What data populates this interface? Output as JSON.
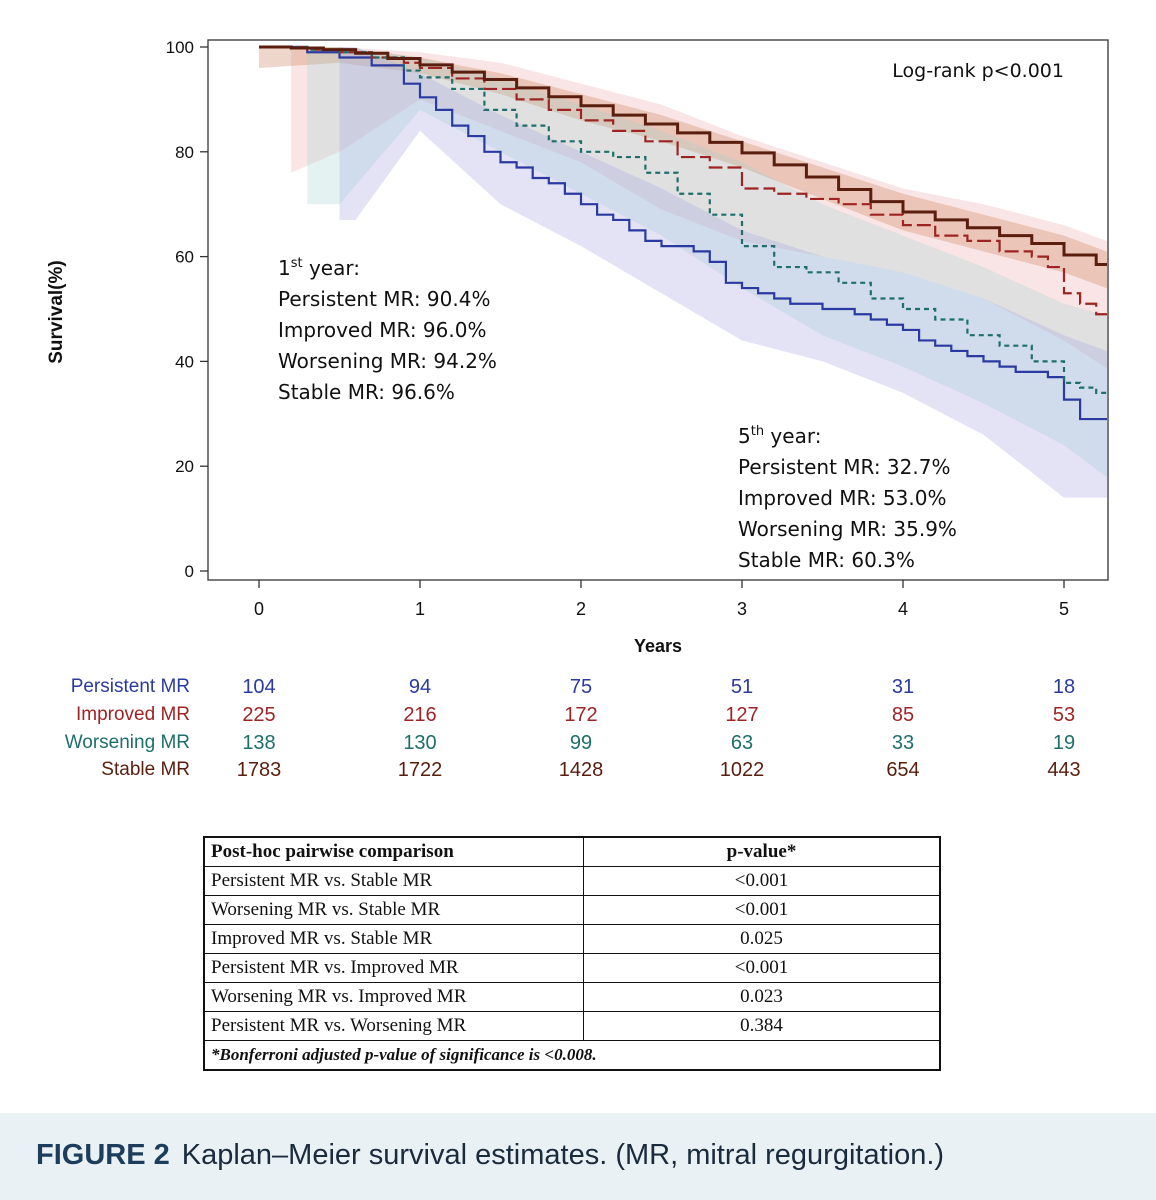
{
  "chart_data": {
    "type": "line",
    "title": "",
    "xlabel": "Years",
    "ylabel": "Survival(%)",
    "xlim": [
      -0.3,
      5.35
    ],
    "ylim": [
      -2,
      101
    ],
    "x_ticks": [
      0,
      1,
      2,
      3,
      4,
      5
    ],
    "y_ticks": [
      0,
      20,
      40,
      60,
      80,
      100
    ],
    "annotation_logrank": "Log-rank p<0.001",
    "series": [
      {
        "name": "Persistent MR",
        "color": "#2b3aa0",
        "dash": "solid",
        "x": [
          0,
          0.3,
          0.5,
          0.7,
          0.9,
          1.0,
          1.1,
          1.2,
          1.3,
          1.4,
          1.5,
          1.6,
          1.7,
          1.8,
          1.9,
          2.0,
          2.1,
          2.2,
          2.3,
          2.4,
          2.5,
          2.6,
          2.7,
          2.8,
          2.9,
          3.0,
          3.1,
          3.2,
          3.3,
          3.4,
          3.5,
          3.6,
          3.7,
          3.8,
          3.9,
          4.0,
          4.1,
          4.2,
          4.3,
          4.4,
          4.5,
          4.6,
          4.7,
          4.8,
          4.9,
          5.0,
          5.1,
          5.3
        ],
        "y": [
          100,
          99,
          98,
          96.5,
          93,
          90.4,
          88,
          85,
          83,
          80,
          78,
          77,
          75,
          74,
          72,
          70,
          68,
          67,
          65,
          63,
          62,
          62,
          61,
          59,
          55,
          54,
          53,
          52,
          51,
          51,
          50,
          50,
          49,
          48,
          47,
          46,
          44,
          43,
          42,
          41,
          40,
          39,
          38,
          38,
          37,
          32.7,
          29,
          29
        ]
      },
      {
        "name": "Improved MR",
        "color": "#9e2424",
        "dash": "long",
        "x": [
          0,
          0.3,
          0.5,
          0.7,
          0.9,
          1.0,
          1.2,
          1.4,
          1.6,
          1.8,
          2.0,
          2.2,
          2.4,
          2.6,
          2.8,
          3.0,
          3.2,
          3.4,
          3.6,
          3.8,
          4.0,
          4.2,
          4.4,
          4.6,
          4.8,
          4.9,
          5.0,
          5.1,
          5.2,
          5.3
        ],
        "y": [
          100,
          99.5,
          99,
          98,
          97,
          96,
          94,
          92,
          90,
          88,
          86,
          84,
          82,
          79,
          77,
          73,
          72,
          71,
          70,
          68,
          66,
          64,
          63,
          61,
          60,
          58,
          53,
          51,
          49,
          48.5
        ]
      },
      {
        "name": "Worsening MR",
        "color": "#1e6f6b",
        "dash": "short",
        "x": [
          0,
          0.3,
          0.5,
          0.7,
          0.9,
          1.0,
          1.2,
          1.4,
          1.6,
          1.8,
          2.0,
          2.2,
          2.4,
          2.6,
          2.8,
          3.0,
          3.2,
          3.4,
          3.6,
          3.8,
          4.0,
          4.2,
          4.4,
          4.6,
          4.8,
          5.0,
          5.1,
          5.2,
          5.3
        ],
        "y": [
          100,
          99.5,
          99,
          98,
          95.5,
          94.2,
          92,
          88,
          85,
          82,
          80,
          79,
          76,
          72,
          68,
          62,
          58,
          57,
          55,
          52,
          50,
          48,
          45,
          43,
          40,
          35.9,
          35,
          34,
          34
        ]
      },
      {
        "name": "Stable MR",
        "color": "#5a1e0e",
        "dash": "solid",
        "x": [
          0,
          0.2,
          0.4,
          0.6,
          0.8,
          1.0,
          1.2,
          1.4,
          1.6,
          1.8,
          2.0,
          2.2,
          2.4,
          2.6,
          2.8,
          3.0,
          3.2,
          3.4,
          3.6,
          3.8,
          4.0,
          4.2,
          4.4,
          4.6,
          4.8,
          5.0,
          5.2,
          5.35
        ],
        "y": [
          100,
          99.8,
          99.5,
          98.8,
          97.8,
          96.6,
          95.2,
          93.8,
          92.2,
          90.5,
          88.8,
          87,
          85.3,
          83.6,
          81.8,
          79.8,
          77.5,
          75.2,
          72.8,
          70.5,
          68.5,
          67,
          65.5,
          64,
          62.5,
          60.3,
          58.5,
          57
        ]
      }
    ],
    "bands": [
      {
        "series": "Improved MR",
        "color": "#e8a0a0",
        "opacity": 0.28,
        "x": [
          0.2,
          0.5,
          1.0,
          1.5,
          2.0,
          2.5,
          3.0,
          3.5,
          4.0,
          4.5,
          5.0,
          5.35
        ],
        "upper": [
          100,
          100,
          99,
          97,
          93,
          89,
          83,
          78,
          73,
          70,
          66,
          62
        ],
        "lower": [
          76,
          80,
          90,
          84,
          78,
          69,
          63,
          60,
          57,
          52,
          44,
          37
        ]
      },
      {
        "series": "Stable MR",
        "color": "#c77a50",
        "opacity": 0.3,
        "x": [
          0.0,
          0.5,
          1.0,
          1.5,
          2.0,
          2.5,
          3.0,
          3.5,
          4.0,
          4.5,
          5.0,
          5.35
        ],
        "upper": [
          100,
          100,
          98,
          95,
          91,
          87,
          82,
          77,
          72,
          68,
          64,
          60
        ],
        "lower": [
          96,
          97,
          95,
          91,
          86,
          82,
          77,
          71,
          65,
          61,
          57,
          53
        ]
      },
      {
        "series": "Worsening MR",
        "color": "#9fd3cf",
        "opacity": 0.28,
        "x": [
          0.3,
          0.5,
          1.0,
          1.5,
          2.0,
          2.5,
          3.0,
          3.5,
          4.0,
          4.5,
          5.0,
          5.35
        ],
        "upper": [
          100,
          100,
          98,
          94,
          89,
          84,
          78,
          70,
          64,
          58,
          51,
          48
        ],
        "lower": [
          70,
          70,
          88,
          80,
          72,
          64,
          54,
          45,
          39,
          32,
          24,
          16
        ]
      },
      {
        "series": "Persistent MR",
        "color": "#a9a7e0",
        "opacity": 0.32,
        "x": [
          0.5,
          0.6,
          1.0,
          1.5,
          2.0,
          2.5,
          3.0,
          3.5,
          4.0,
          4.5,
          5.0,
          5.35
        ],
        "upper": [
          100,
          100,
          95,
          87,
          80,
          73,
          65,
          60,
          57,
          52,
          45,
          41
        ],
        "lower": [
          67,
          67,
          84,
          70,
          62,
          53,
          44,
          40,
          34,
          26,
          14,
          14
        ]
      }
    ],
    "first_year": {
      "heading_main": "1",
      "heading_sup": "st",
      "heading_rest": " year:",
      "lines": [
        "Persistent MR: 90.4%",
        "Improved MR: 96.0%",
        "Worsening MR: 94.2%",
        "Stable MR: 96.6%"
      ]
    },
    "fifth_year": {
      "heading_main": "5",
      "heading_sup": "th",
      "heading_rest": " year:",
      "lines": [
        "Persistent MR: 32.7%",
        "Improved MR: 53.0%",
        "Worsening MR: 35.9%",
        "Stable MR: 60.3%"
      ]
    },
    "risk_table": {
      "times": [
        0,
        1,
        2,
        3,
        4,
        5
      ],
      "rows": [
        {
          "label": "Persistent MR",
          "color": "#2b3aa0",
          "values": [
            "104",
            "94",
            "75",
            "51",
            "31",
            "18"
          ]
        },
        {
          "label": "Improved MR",
          "color": "#9e2424",
          "values": [
            "225",
            "216",
            "172",
            "127",
            "85",
            "53"
          ]
        },
        {
          "label": "Worsening MR",
          "color": "#1e6f6b",
          "values": [
            "138",
            "130",
            "99",
            "63",
            "33",
            "19"
          ]
        },
        {
          "label": "Stable MR",
          "color": "#5a1e0e",
          "values": [
            "1783",
            "1722",
            "1428",
            "1022",
            "654",
            "443"
          ]
        }
      ]
    }
  },
  "posthoc_table": {
    "header": [
      "Post-hoc pairwise comparison",
      "p-value*"
    ],
    "rows": [
      [
        "Persistent MR vs. Stable MR",
        "<0.001"
      ],
      [
        "Worsening MR vs. Stable MR",
        "<0.001"
      ],
      [
        "Improved MR vs. Stable MR",
        "0.025"
      ],
      [
        "Persistent MR vs. Improved MR",
        "<0.001"
      ],
      [
        "Worsening MR vs. Improved MR",
        "0.023"
      ],
      [
        "Persistent MR vs. Worsening MR",
        "0.384"
      ]
    ],
    "footnote": "*Bonferroni adjusted p-value of significance is <0.008."
  },
  "caption": {
    "label": "FIGURE 2",
    "text": "Kaplan–Meier survival estimates. (MR, mitral regurgitation.)"
  }
}
